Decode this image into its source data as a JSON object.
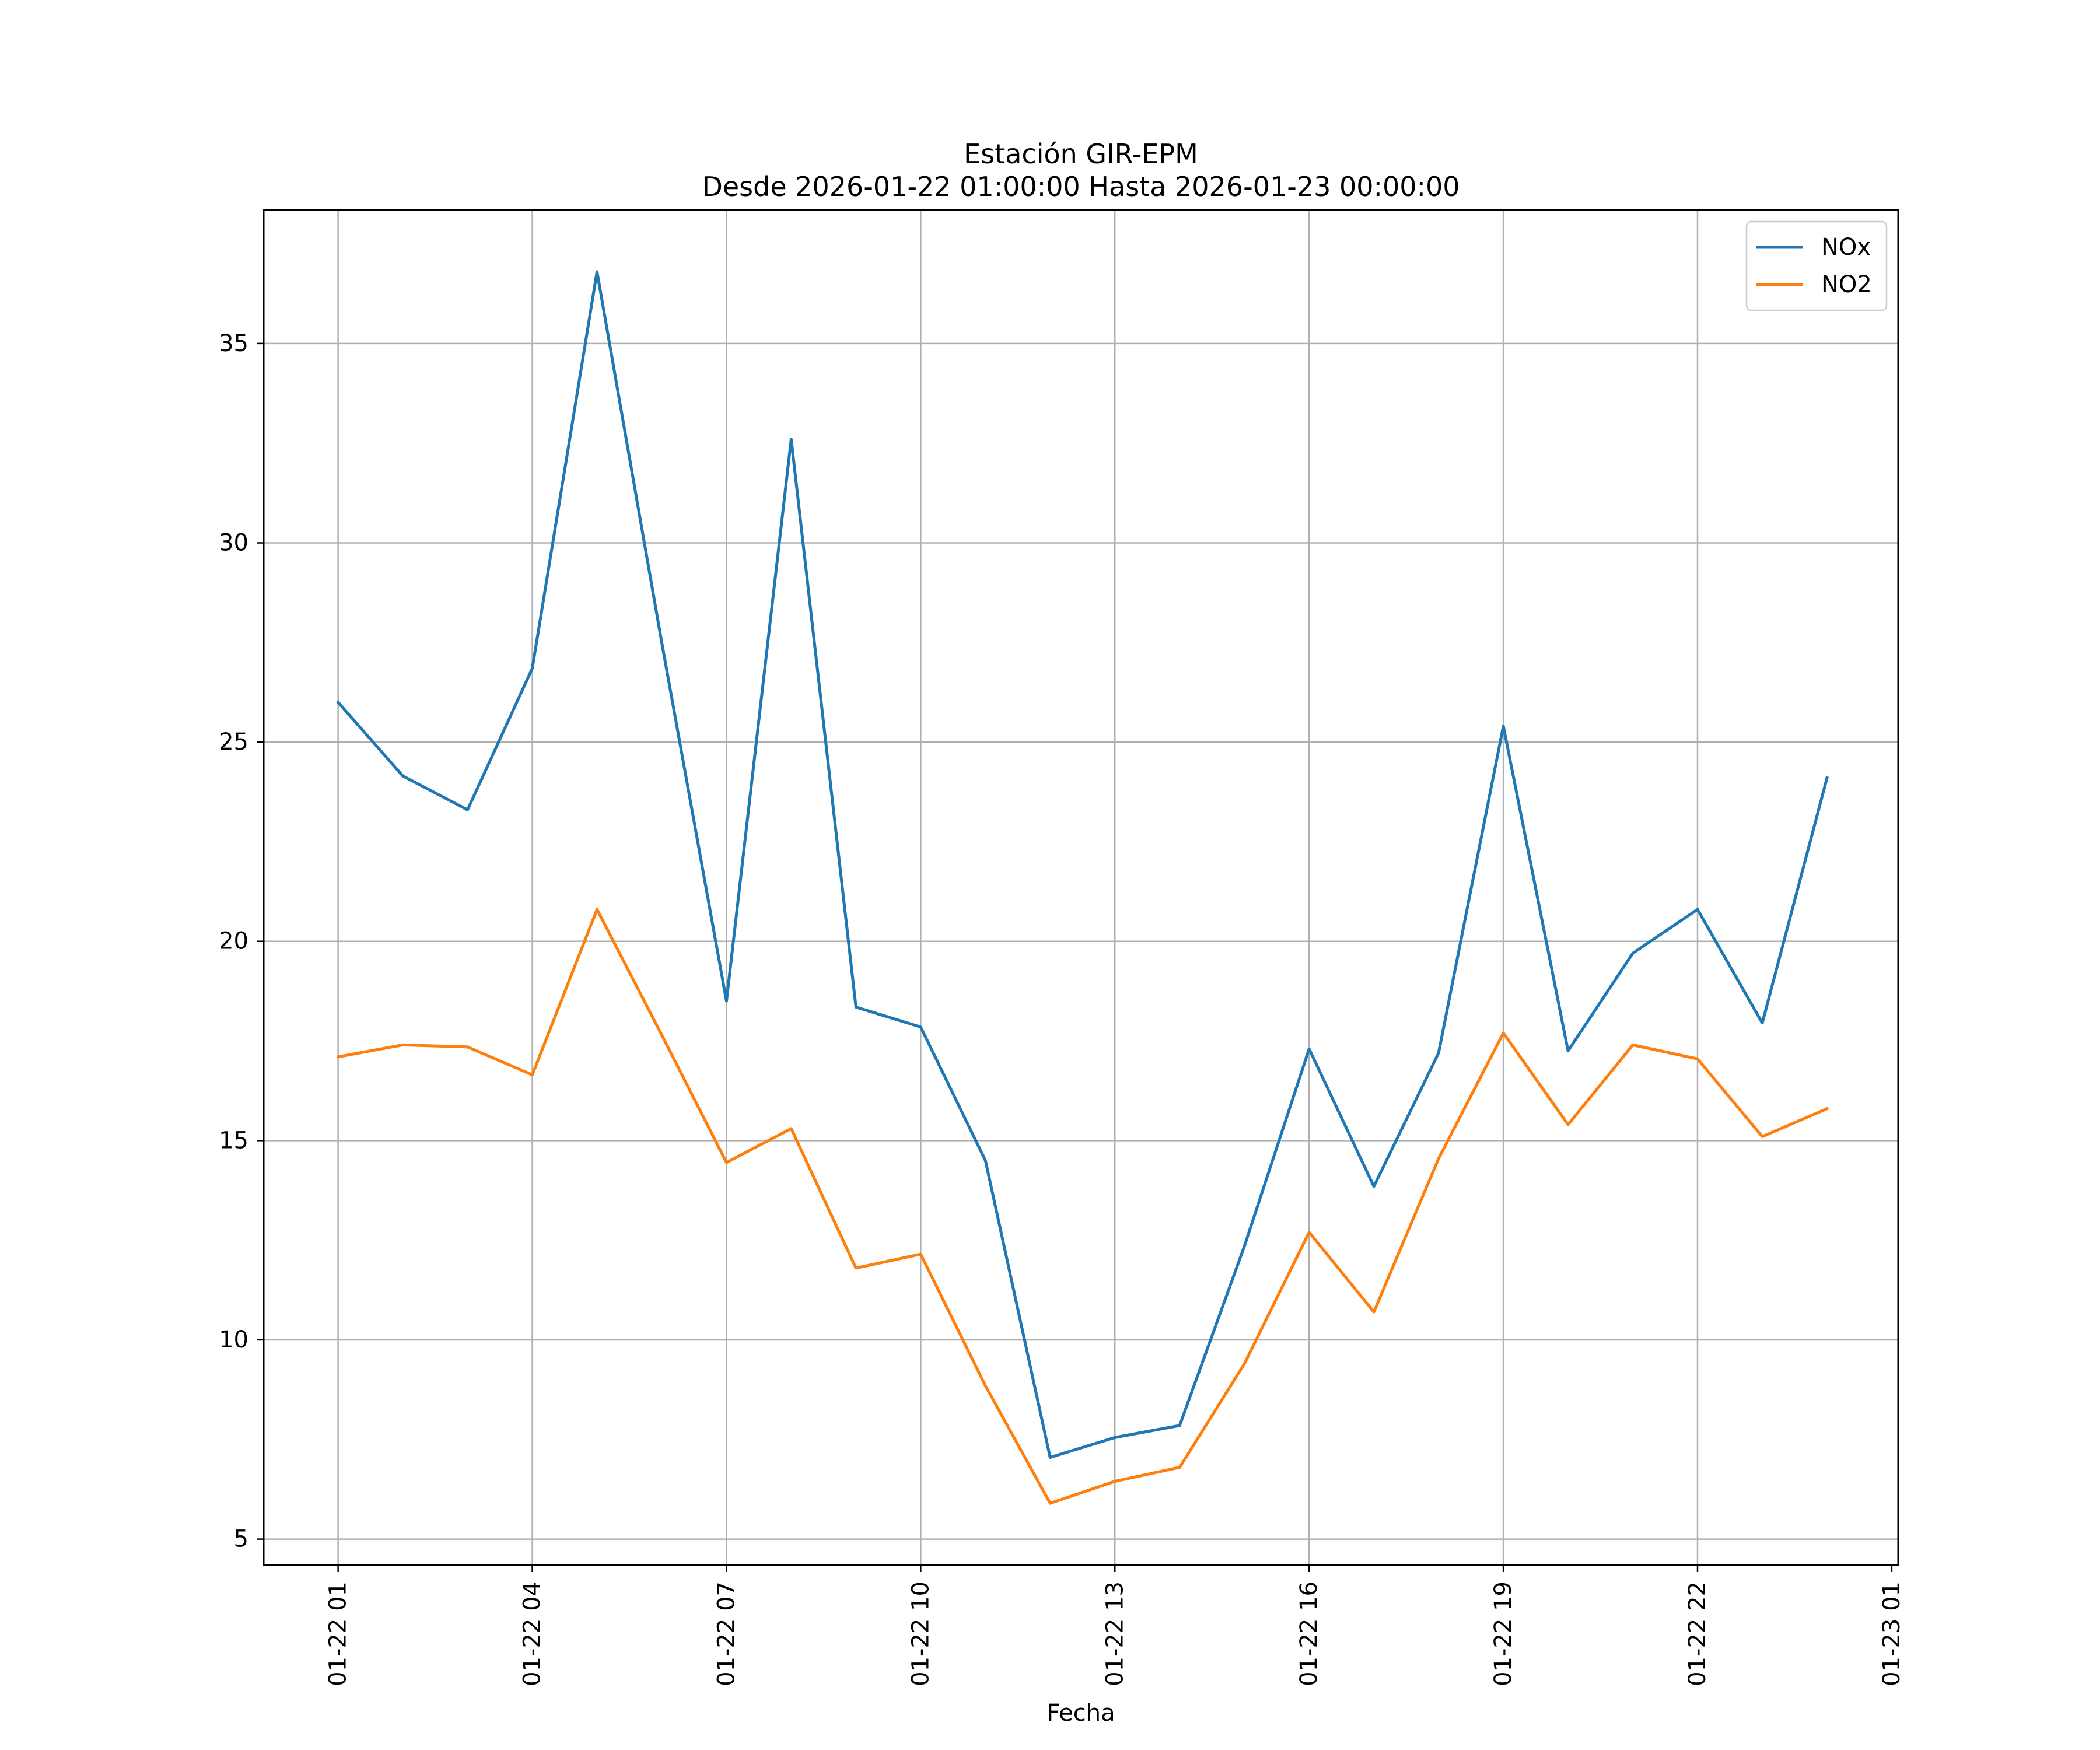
{
  "chart_data": {
    "type": "line",
    "title": [
      "Estación GIR-EPM",
      "Desde 2026-01-22 01:00:00 Hasta 2026-01-23 00:00:00"
    ],
    "xlabel": "Fecha",
    "ylabel": "",
    "x_hours": [
      1,
      2,
      3,
      4,
      5,
      6,
      7,
      8,
      9,
      10,
      11,
      12,
      13,
      14,
      15,
      16,
      17,
      18,
      19,
      20,
      21,
      22,
      23,
      24
    ],
    "xlim": [
      -0.15,
      25.1
    ],
    "x_ticks": [
      {
        "hour": 1,
        "label": "01-22 01"
      },
      {
        "hour": 4,
        "label": "01-22 04"
      },
      {
        "hour": 7,
        "label": "01-22 07"
      },
      {
        "hour": 10,
        "label": "01-22 10"
      },
      {
        "hour": 13,
        "label": "01-22 13"
      },
      {
        "hour": 16,
        "label": "01-22 16"
      },
      {
        "hour": 19,
        "label": "01-22 19"
      },
      {
        "hour": 22,
        "label": "01-22 22"
      },
      {
        "hour": 25,
        "label": "01-23 01"
      }
    ],
    "ylim": [
      4.35,
      38.35
    ],
    "y_ticks": [
      5,
      10,
      15,
      20,
      25,
      30,
      35
    ],
    "grid": true,
    "legend_position": "top-right",
    "series": [
      {
        "name": "NOx",
        "color": "#1f77b4",
        "values": [
          26.0,
          24.15,
          23.3,
          26.85,
          36.8,
          27.5,
          18.5,
          32.6,
          18.35,
          17.85,
          14.5,
          7.05,
          7.55,
          7.85,
          12.35,
          17.3,
          13.85,
          17.2,
          25.4,
          17.25,
          19.7,
          20.8,
          17.95,
          24.1
        ]
      },
      {
        "name": "NO2",
        "color": "#ff7f0e",
        "values": [
          17.1,
          17.4,
          17.35,
          16.65,
          20.8,
          17.65,
          14.45,
          15.3,
          11.8,
          12.15,
          8.85,
          5.9,
          6.45,
          6.8,
          9.4,
          12.7,
          10.7,
          14.55,
          17.7,
          15.4,
          17.4,
          17.05,
          15.1,
          15.8
        ]
      }
    ]
  }
}
